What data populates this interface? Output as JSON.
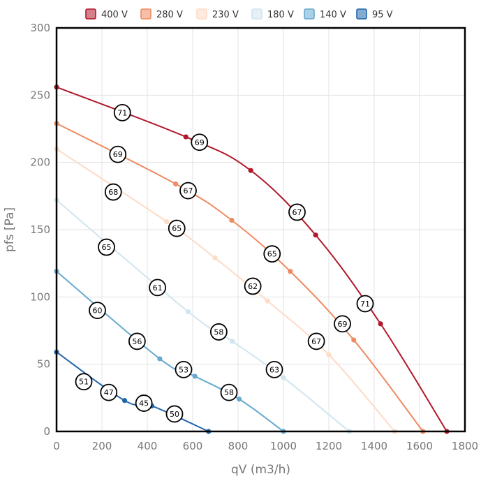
{
  "chart_data": {
    "type": "line",
    "xlabel": "qV (m3/h)",
    "ylabel": "pfs [Pa]",
    "xlim": [
      0,
      1800
    ],
    "ylim": [
      0,
      300
    ],
    "x_ticks": [
      0,
      200,
      400,
      600,
      800,
      1000,
      1200,
      1400,
      1600,
      1800
    ],
    "y_ticks": [
      0,
      50,
      100,
      150,
      200,
      250,
      300
    ],
    "grid": true,
    "legend_position": "top",
    "series": [
      {
        "name": "400 V",
        "color": "#b2182b",
        "points": [
          [
            0,
            256
          ],
          [
            570,
            219
          ],
          [
            856,
            194
          ],
          [
            1142,
            146
          ],
          [
            1428,
            80
          ],
          [
            1720,
            0
          ]
        ],
        "labels": [
          {
            "x": 290,
            "y": 237,
            "text": "71"
          },
          {
            "x": 630,
            "y": 215,
            "text": "69"
          },
          {
            "x": 1060,
            "y": 163,
            "text": "67"
          },
          {
            "x": 1360,
            "y": 95,
            "text": "71"
          }
        ]
      },
      {
        "name": "280 V",
        "color": "#ef8a62",
        "points": [
          [
            0,
            229
          ],
          [
            525,
            184
          ],
          [
            772,
            157
          ],
          [
            1030,
            119
          ],
          [
            1310,
            68
          ],
          [
            1615,
            0
          ]
        ],
        "labels": [
          {
            "x": 270,
            "y": 206,
            "text": "69"
          },
          {
            "x": 580,
            "y": 179,
            "text": "67"
          },
          {
            "x": 950,
            "y": 132,
            "text": "65"
          },
          {
            "x": 1260,
            "y": 80,
            "text": "69"
          }
        ]
      },
      {
        "name": "230 V",
        "color": "#fddbc7",
        "points": [
          [
            0,
            210
          ],
          [
            485,
            156
          ],
          [
            698,
            129
          ],
          [
            930,
            97
          ],
          [
            1200,
            57
          ],
          [
            1490,
            0
          ]
        ],
        "labels": [
          {
            "x": 250,
            "y": 178,
            "text": "68"
          },
          {
            "x": 530,
            "y": 151,
            "text": "65"
          },
          {
            "x": 865,
            "y": 108,
            "text": "62"
          },
          {
            "x": 1145,
            "y": 67,
            "text": "67"
          }
        ]
      },
      {
        "name": "180 V",
        "color": "#d1e5f0",
        "points": [
          [
            0,
            172
          ],
          [
            580,
            89
          ],
          [
            775,
            67
          ],
          [
            1000,
            40
          ],
          [
            1290,
            0
          ]
        ],
        "labels": [
          {
            "x": 220,
            "y": 137,
            "text": "65"
          },
          {
            "x": 445,
            "y": 107,
            "text": "61"
          },
          {
            "x": 715,
            "y": 74,
            "text": "58"
          },
          {
            "x": 960,
            "y": 46,
            "text": "63"
          }
        ]
      },
      {
        "name": "140 V",
        "color": "#67a9cf",
        "points": [
          [
            0,
            119
          ],
          [
            455,
            54
          ],
          [
            610,
            41
          ],
          [
            805,
            24
          ],
          [
            1000,
            0
          ]
        ],
        "labels": [
          {
            "x": 180,
            "y": 90,
            "text": "60"
          },
          {
            "x": 355,
            "y": 67,
            "text": "56"
          },
          {
            "x": 560,
            "y": 46,
            "text": "53"
          },
          {
            "x": 760,
            "y": 29,
            "text": "58"
          }
        ]
      },
      {
        "name": "95 V",
        "color": "#2166ac",
        "points": [
          [
            0,
            59
          ],
          [
            300,
            23
          ],
          [
            420,
            19
          ],
          [
            670,
            0
          ]
        ],
        "labels": [
          {
            "x": 120,
            "y": 37,
            "text": "51"
          },
          {
            "x": 230,
            "y": 29,
            "text": "47"
          },
          {
            "x": 385,
            "y": 21,
            "text": "45"
          },
          {
            "x": 520,
            "y": 13,
            "text": "50"
          }
        ]
      }
    ]
  }
}
